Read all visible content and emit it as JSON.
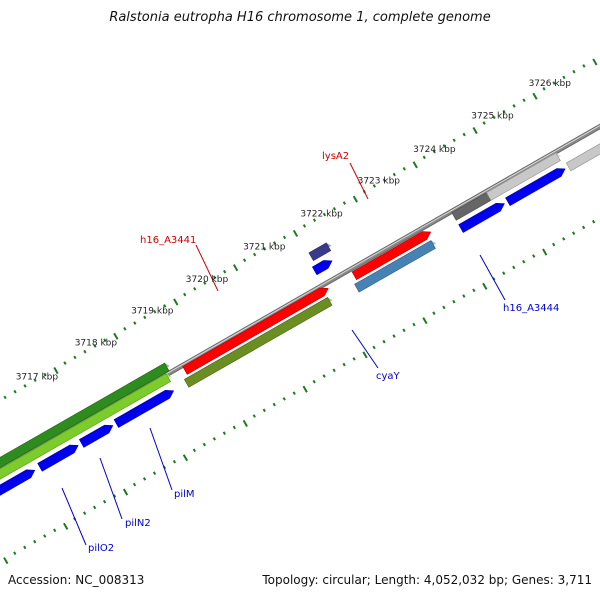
{
  "title": "Ralstonia eutropha H16 chromosome 1, complete genome",
  "footer": {
    "accession": "Accession: NC_008313",
    "summary": "Topology: circular; Length: 4,052,032 bp; Genes: 3,711"
  },
  "map": {
    "backbone_color": "#8a8a8a",
    "tick_color": "#1e7a1e",
    "scale_labels": [
      "3717 kbp",
      "3718 kbp",
      "3719 kbp",
      "3720 kbp",
      "3721 kbp",
      "3722 kbp",
      "3723 kbp",
      "3724 kbp",
      "3725 kbp",
      "3726 kbp"
    ],
    "gene_labels": {
      "lysA2": "lysA2",
      "h16_A3441": "h16_A3441",
      "h16_A3444": "h16_A3444",
      "cyaY": "cyaY",
      "pilM": "pilM",
      "pilN2": "pilN2",
      "pilO2": "pilO2"
    },
    "label_colors": {
      "forward": "#cc0000",
      "reverse": "#0000cc"
    },
    "feature_colors": {
      "cds": "#0000ee",
      "gene": "#ff0000",
      "olive": "#6b8e23",
      "steelblue": "#4682b4",
      "lightgreen": "#7ccd2a",
      "green": "#2e8b1e",
      "orange": "#ff8c00",
      "gray": "#666666",
      "lightgray": "#c8c8c8",
      "navy": "#3a3a8c"
    }
  }
}
